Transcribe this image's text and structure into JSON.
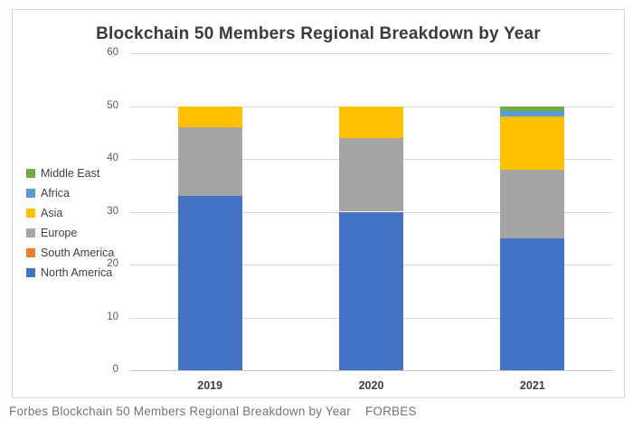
{
  "header": {
    "title": "Blockchain 50 Members Regional Breakdown by Year"
  },
  "footer": {
    "caption": "Forbes Blockchain 50 Members Regional Breakdown by Year",
    "source": "FORBES"
  },
  "colors": {
    "north_america": "#4472C4",
    "south_america": "#ED7D31",
    "europe": "#A5A5A5",
    "asia": "#FFC000",
    "africa": "#5B9BD5",
    "middle_east": "#70AD47",
    "gridline": "#d9d9d9",
    "card_border": "#d9d9d9"
  },
  "chart_data": {
    "type": "bar",
    "stacked": true,
    "title": "Blockchain 50 Members Regional Breakdown by Year",
    "categories": [
      "2019",
      "2020",
      "2021"
    ],
    "series": [
      {
        "name": "North America",
        "color": "#4472C4",
        "values": [
          33,
          30,
          25
        ]
      },
      {
        "name": "South America",
        "color": "#ED7D31",
        "values": [
          0,
          0,
          0
        ]
      },
      {
        "name": "Europe",
        "color": "#A5A5A5",
        "values": [
          13,
          14,
          13
        ]
      },
      {
        "name": "Asia",
        "color": "#FFC000",
        "values": [
          4,
          6,
          10
        ]
      },
      {
        "name": "Africa",
        "color": "#5B9BD5",
        "values": [
          0,
          0,
          1
        ]
      },
      {
        "name": "Middle East",
        "color": "#70AD47",
        "values": [
          0,
          0,
          1
        ]
      }
    ],
    "totals": [
      50,
      50,
      50
    ],
    "xlabel": "",
    "ylabel": "",
    "ylim": [
      0,
      60
    ],
    "yticks": [
      0,
      10,
      20,
      30,
      40,
      50,
      60
    ],
    "grid": true,
    "legend_position": "left",
    "legend_order": [
      "Middle East",
      "Africa",
      "Asia",
      "Europe",
      "South America",
      "North America"
    ]
  }
}
